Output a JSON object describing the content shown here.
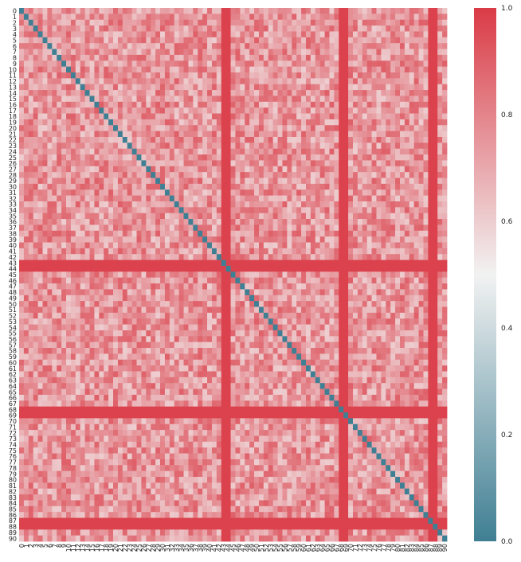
{
  "chart_data": {
    "type": "heatmap",
    "title": "",
    "xlabel": "",
    "ylabel": "",
    "n": 91,
    "row_labels": [
      "0",
      "1",
      "2",
      "3",
      "4",
      "5",
      "6",
      "7",
      "8",
      "9",
      "10",
      "11",
      "12",
      "13",
      "14",
      "15",
      "16",
      "17",
      "18",
      "19",
      "20",
      "21",
      "22",
      "23",
      "24",
      "25",
      "26",
      "27",
      "28",
      "29",
      "30",
      "31",
      "32",
      "33",
      "34",
      "35",
      "36",
      "37",
      "38",
      "39",
      "40",
      "41",
      "42",
      "43",
      "44",
      "45",
      "46",
      "47",
      "48",
      "49",
      "50",
      "51",
      "52",
      "53",
      "54",
      "55",
      "56",
      "57",
      "58",
      "59",
      "60",
      "61",
      "62",
      "63",
      "64",
      "65",
      "66",
      "67",
      "68",
      "69",
      "70",
      "71",
      "72",
      "73",
      "74",
      "75",
      "76",
      "77",
      "78",
      "79",
      "80",
      "81",
      "82",
      "83",
      "84",
      "85",
      "86",
      "87",
      "88",
      "89",
      "90"
    ],
    "col_labels": [
      "0",
      "1",
      "2",
      "3",
      "4",
      "5",
      "6",
      "7",
      "8",
      "9",
      "10",
      "11",
      "12",
      "13",
      "14",
      "15",
      "16",
      "17",
      "18",
      "19",
      "20",
      "21",
      "22",
      "23",
      "24",
      "25",
      "26",
      "27",
      "28",
      "29",
      "30",
      "31",
      "32",
      "33",
      "34",
      "35",
      "36",
      "37",
      "38",
      "39",
      "40",
      "41",
      "42",
      "43",
      "44",
      "45",
      "46",
      "47",
      "48",
      "49",
      "50",
      "51",
      "52",
      "53",
      "54",
      "55",
      "56",
      "57",
      "58",
      "59",
      "60",
      "61",
      "62",
      "63",
      "64",
      "65",
      "66",
      "67",
      "68",
      "69",
      "70",
      "71",
      "72",
      "73",
      "74",
      "75",
      "76",
      "77",
      "78",
      "79",
      "80",
      "81",
      "82",
      "83",
      "84",
      "85",
      "86",
      "87",
      "88",
      "89",
      "90"
    ],
    "diagonal_value": 0.0,
    "high_value_indices": [
      43,
      44,
      68,
      69,
      87,
      88
    ],
    "high_value": 0.98,
    "typical_range": [
      0.6,
      0.9
    ],
    "colorbar": {
      "min": 0.0,
      "max": 1.0,
      "ticks": [
        "0.0",
        "0.2",
        "0.4",
        "0.6",
        "0.8",
        "1.0"
      ],
      "colors": [
        "#3f7f93",
        "#f2f2f2",
        "#da3b46"
      ]
    }
  }
}
